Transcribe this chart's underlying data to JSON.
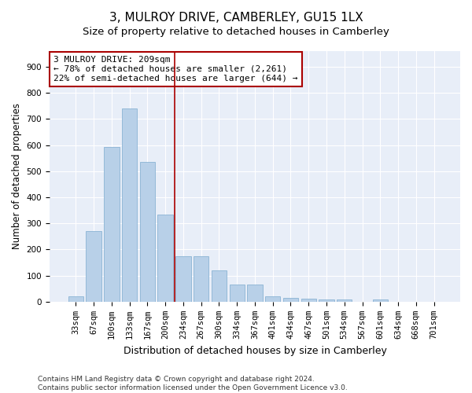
{
  "title": "3, MULROY DRIVE, CAMBERLEY, GU15 1LX",
  "subtitle": "Size of property relative to detached houses in Camberley",
  "xlabel": "Distribution of detached houses by size in Camberley",
  "ylabel": "Number of detached properties",
  "categories": [
    "33sqm",
    "67sqm",
    "100sqm",
    "133sqm",
    "167sqm",
    "200sqm",
    "234sqm",
    "267sqm",
    "300sqm",
    "334sqm",
    "367sqm",
    "401sqm",
    "434sqm",
    "467sqm",
    "501sqm",
    "534sqm",
    "567sqm",
    "601sqm",
    "634sqm",
    "668sqm",
    "701sqm"
  ],
  "values": [
    22,
    270,
    592,
    740,
    535,
    335,
    175,
    175,
    120,
    65,
    65,
    20,
    15,
    12,
    10,
    8,
    0,
    10,
    0,
    0,
    0
  ],
  "bar_color": "#b8d0e8",
  "bar_edge_color": "#8ab4d4",
  "vline_color": "#aa0000",
  "annotation_text": "3 MULROY DRIVE: 209sqm\n← 78% of detached houses are smaller (2,261)\n22% of semi-detached houses are larger (644) →",
  "annotation_box_color": "#ffffff",
  "annotation_box_edge": "#aa0000",
  "ylim": [
    0,
    960
  ],
  "yticks": [
    0,
    100,
    200,
    300,
    400,
    500,
    600,
    700,
    800,
    900
  ],
  "background_color": "#e8eef8",
  "footer": "Contains HM Land Registry data © Crown copyright and database right 2024.\nContains public sector information licensed under the Open Government Licence v3.0.",
  "title_fontsize": 11,
  "subtitle_fontsize": 9.5,
  "xlabel_fontsize": 9,
  "ylabel_fontsize": 8.5,
  "tick_fontsize": 7.5,
  "annotation_fontsize": 8,
  "footer_fontsize": 6.5
}
